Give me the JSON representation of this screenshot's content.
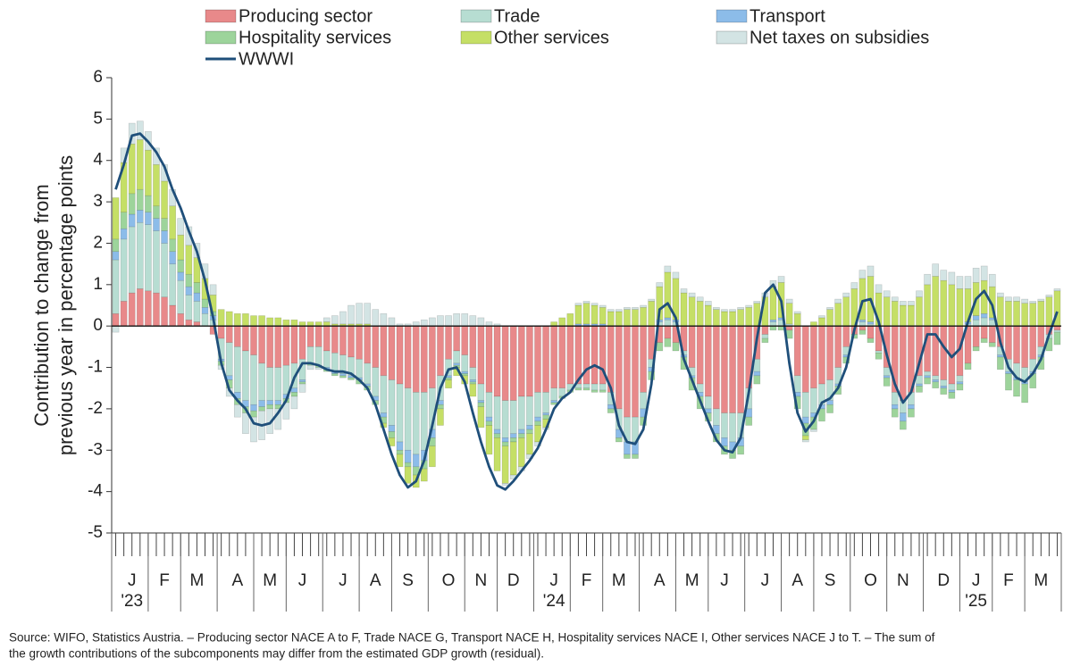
{
  "chart_data": {
    "type": "bar",
    "y_label": [
      "Contribution to change from",
      "previous year in percentage points"
    ],
    "note": [
      "Source: WIFO, Statistics Austria. – Producing sector NACE A to F, Trade NACE G, Transport NACE H, Hospitality services NACE I, Other services NACE J to T. – The sum of",
      "the growth contributions of the subcomponents may differ from the estimated GDP growth (residual)."
    ],
    "ylim": [
      -5,
      6
    ],
    "yticks": [
      -5,
      -4,
      -3,
      -2,
      -1,
      0,
      1,
      2,
      3,
      4,
      5,
      6
    ],
    "categories": [
      null,
      null,
      "J",
      null,
      null,
      null,
      "F",
      null,
      null,
      null,
      "M",
      null,
      null,
      null,
      null,
      "A",
      null,
      null,
      null,
      "M",
      null,
      null,
      null,
      "J",
      null,
      null,
      null,
      null,
      "J",
      null,
      null,
      null,
      "A",
      null,
      null,
      null,
      "S",
      null,
      null,
      null,
      null,
      "O",
      null,
      null,
      null,
      "N",
      null,
      null,
      null,
      "D",
      null,
      null,
      null,
      null,
      "J",
      null,
      null,
      null,
      "F",
      null,
      null,
      null,
      "M",
      null,
      null,
      null,
      null,
      "A",
      null,
      null,
      null,
      "M",
      null,
      null,
      null,
      "J",
      null,
      null,
      null,
      null,
      "J",
      null,
      null,
      null,
      "A",
      null,
      null,
      null,
      "S",
      null,
      null,
      null,
      null,
      "O",
      null,
      null,
      null,
      "N",
      null,
      null,
      null,
      null,
      "D",
      null,
      null,
      null,
      "J",
      null,
      null,
      null,
      "F",
      null,
      null,
      null,
      "M",
      null,
      null
    ],
    "years": [
      null,
      null,
      "'23",
      null,
      null,
      null,
      null,
      null,
      null,
      null,
      null,
      null,
      null,
      null,
      null,
      null,
      null,
      null,
      null,
      null,
      null,
      null,
      null,
      null,
      null,
      null,
      null,
      null,
      null,
      null,
      null,
      null,
      null,
      null,
      null,
      null,
      null,
      null,
      null,
      null,
      null,
      null,
      null,
      null,
      null,
      null,
      null,
      null,
      null,
      null,
      null,
      null,
      null,
      null,
      "'24",
      null,
      null,
      null,
      null,
      null,
      null,
      null,
      null,
      null,
      null,
      null,
      null,
      null,
      null,
      null,
      null,
      null,
      null,
      null,
      null,
      null,
      null,
      null,
      null,
      null,
      null,
      null,
      null,
      null,
      null,
      null,
      null,
      null,
      null,
      null,
      null,
      null,
      null,
      null,
      null,
      null,
      null,
      null,
      null,
      null,
      null,
      null,
      null,
      null,
      null,
      null,
      "'25",
      null,
      null,
      null,
      null,
      null,
      null,
      null,
      null,
      null,
      null
    ],
    "series": [
      {
        "name": "Producing sector",
        "color": "#e8898a",
        "values": [
          0.3,
          0.6,
          0.8,
          0.9,
          0.85,
          0.8,
          0.7,
          0.5,
          0.3,
          0.15,
          0.1,
          0,
          -0.2,
          -0.3,
          -0.4,
          -0.5,
          -0.6,
          -0.7,
          -0.9,
          -1.0,
          -1.0,
          -0.95,
          -0.9,
          -0.8,
          -0.5,
          -0.5,
          -0.6,
          -0.65,
          -0.7,
          -0.75,
          -0.8,
          -0.9,
          -1.0,
          -1.2,
          -1.3,
          -1.4,
          -1.5,
          -1.6,
          -1.6,
          -1.5,
          -1.2,
          -0.8,
          -0.6,
          -0.7,
          -1.0,
          -1.4,
          -1.6,
          -1.7,
          -1.8,
          -1.8,
          -1.7,
          -1.7,
          -1.6,
          -1.6,
          -1.5,
          -1.5,
          -1.4,
          -1.4,
          -1.4,
          -1.4,
          -1.4,
          -1.6,
          -2.0,
          -2.2,
          -2.2,
          -1.6,
          -0.8,
          -0.4,
          -0.3,
          -0.4,
          -0.6,
          -1.0,
          -1.4,
          -1.7,
          -2.0,
          -2.1,
          -2.1,
          -2.1,
          -1.5,
          -0.8,
          -0.2,
          0,
          0,
          -0.1,
          -1.2,
          -1.6,
          -1.5,
          -1.4,
          -1.3,
          -1.0,
          -0.5,
          -0.2,
          -0.1,
          -0.3,
          -0.6,
          -1.0,
          -1.6,
          -1.8,
          -1.6,
          -1.2,
          -1.1,
          -1.2,
          -1.3,
          -1.4,
          -1.2,
          -0.9,
          -0.5,
          -0.3,
          -0.4,
          -0.5,
          -0.8,
          -0.9,
          -1.0,
          -0.8,
          -0.5,
          -0.2,
          -0.1
        ]
      },
      {
        "name": "Trade",
        "color": "#b7ddd2",
        "values": [
          1.3,
          1.5,
          1.6,
          1.6,
          1.6,
          1.5,
          1.3,
          1.0,
          0.8,
          0.6,
          0.5,
          0.3,
          0.15,
          -0.5,
          -0.8,
          -1.1,
          -1.2,
          -1.2,
          -0.9,
          -0.8,
          -0.8,
          -0.7,
          -0.6,
          -0.5,
          -0.4,
          -0.45,
          -0.4,
          -0.45,
          -0.45,
          -0.45,
          -0.45,
          -0.5,
          -0.7,
          -0.9,
          -1.1,
          -1.4,
          -1.5,
          -1.5,
          -1.4,
          -1.0,
          -0.6,
          -0.4,
          -0.3,
          -0.4,
          -0.3,
          -0.4,
          -0.6,
          -0.8,
          -0.9,
          -0.8,
          -0.8,
          -0.7,
          -0.6,
          -0.5,
          -0.3,
          -0.2,
          -0.15,
          -0.1,
          -0.1,
          -0.15,
          -0.15,
          -0.3,
          -0.5,
          -0.6,
          -0.6,
          -0.4,
          -0.2,
          0.1,
          0.15,
          0.1,
          -0.1,
          -0.2,
          -0.2,
          -0.3,
          -0.4,
          -0.6,
          -0.7,
          -0.6,
          -0.5,
          -0.3,
          -0.1,
          0.1,
          0.15,
          0.05,
          -0.4,
          -0.6,
          -0.6,
          -0.5,
          -0.5,
          -0.4,
          -0.2,
          0,
          0.1,
          0.05,
          -0.05,
          -0.2,
          -0.3,
          -0.3,
          -0.3,
          -0.2,
          -0.1,
          -0.1,
          -0.15,
          -0.15,
          -0.15,
          0.05,
          0.15,
          0.2,
          0.15,
          -0.2,
          -0.3,
          -0.35,
          -0.35,
          -0.3,
          -0.2,
          -0.1,
          -0.05
        ]
      },
      {
        "name": "Transport",
        "color": "#8cbce9",
        "values": [
          0.2,
          0.25,
          0.3,
          0.3,
          0.3,
          0.3,
          0.3,
          0.3,
          0.2,
          0.2,
          0.2,
          0.15,
          0.1,
          -0.05,
          -0.1,
          -0.15,
          -0.15,
          -0.15,
          -0.15,
          -0.1,
          -0.1,
          -0.1,
          -0.1,
          -0.05,
          0,
          0,
          -0.05,
          -0.05,
          -0.05,
          -0.05,
          -0.05,
          -0.05,
          -0.1,
          -0.1,
          -0.15,
          -0.2,
          -0.3,
          -0.3,
          -0.25,
          -0.2,
          -0.1,
          -0.05,
          -0.05,
          -0.05,
          -0.05,
          -0.05,
          -0.1,
          -0.1,
          -0.1,
          -0.1,
          -0.1,
          -0.1,
          -0.1,
          -0.05,
          -0.05,
          0,
          0,
          0.05,
          0.05,
          0.05,
          0.05,
          -0.1,
          -0.2,
          -0.3,
          -0.3,
          -0.2,
          -0.1,
          0.05,
          0.05,
          0.05,
          -0.05,
          -0.05,
          -0.1,
          -0.1,
          -0.2,
          -0.2,
          -0.2,
          -0.2,
          -0.2,
          -0.1,
          0,
          0.05,
          0.05,
          0,
          -0.1,
          -0.15,
          -0.1,
          -0.1,
          -0.1,
          -0.05,
          -0.05,
          0,
          0.05,
          0.05,
          0,
          -0.05,
          -0.1,
          -0.2,
          -0.1,
          -0.05,
          -0.05,
          -0.05,
          -0.05,
          -0.05,
          -0.05,
          0.05,
          0.1,
          0.1,
          0.05,
          -0.05,
          -0.05,
          -0.05,
          -0.05,
          -0.05,
          -0.05,
          0,
          0
        ]
      },
      {
        "name": "Hospitality services",
        "color": "#9dd49b",
        "values": [
          0.3,
          0.4,
          0.5,
          0.5,
          0.4,
          0.3,
          0.3,
          0.3,
          0.3,
          0.3,
          0.25,
          0.2,
          0.1,
          -0.1,
          -0.2,
          -0.15,
          -0.15,
          -0.15,
          -0.1,
          -0.1,
          -0.1,
          -0.1,
          -0.1,
          -0.05,
          -0.05,
          -0.05,
          -0.05,
          -0.05,
          -0.05,
          -0.05,
          -0.1,
          -0.1,
          -0.1,
          -0.15,
          -0.15,
          -0.1,
          -0.1,
          -0.2,
          -0.2,
          -0.2,
          -0.1,
          -0.05,
          -0.05,
          -0.05,
          -0.05,
          -0.1,
          -0.1,
          -0.1,
          -0.1,
          -0.1,
          -0.1,
          -0.1,
          -0.1,
          -0.1,
          -0.05,
          -0.05,
          -0.05,
          -0.05,
          -0.05,
          -0.05,
          -0.05,
          -0.1,
          -0.1,
          -0.1,
          -0.1,
          -0.2,
          -0.2,
          -0.2,
          -0.2,
          -0.2,
          -0.3,
          -0.3,
          -0.3,
          -0.2,
          -0.2,
          -0.2,
          -0.2,
          -0.2,
          -0.2,
          -0.2,
          -0.1,
          -0.1,
          -0.1,
          -0.2,
          -0.3,
          -0.3,
          -0.3,
          -0.3,
          -0.2,
          -0.2,
          -0.15,
          -0.1,
          -0.1,
          -0.1,
          -0.15,
          -0.2,
          -0.2,
          -0.2,
          -0.2,
          -0.15,
          -0.15,
          -0.15,
          -0.15,
          -0.15,
          -0.15,
          -0.15,
          -0.1,
          -0.1,
          -0.1,
          -0.3,
          -0.4,
          -0.4,
          -0.45,
          -0.35,
          -0.3,
          -0.3,
          -0.3
        ]
      },
      {
        "name": "Other services",
        "color": "#c5df66",
        "values": [
          1.0,
          1.2,
          1.2,
          1.2,
          1.1,
          1.0,
          0.9,
          0.8,
          0.6,
          0.7,
          0.6,
          0.5,
          0.4,
          0.4,
          0.35,
          0.3,
          0.3,
          0.25,
          0.25,
          0.2,
          0.2,
          0.15,
          0.15,
          0.1,
          0.1,
          0.1,
          0.1,
          0.05,
          0.05,
          0.05,
          0.05,
          0.05,
          0,
          -0.1,
          -0.2,
          -0.3,
          -0.4,
          -0.3,
          -0.3,
          -0.5,
          -0.4,
          -0.2,
          -0.2,
          -0.2,
          -0.3,
          -0.5,
          -0.7,
          -0.8,
          -0.9,
          -0.8,
          -0.7,
          -0.5,
          -0.4,
          -0.2,
          0.1,
          0.2,
          0.3,
          0.45,
          0.5,
          0.45,
          0.4,
          0.35,
          0.35,
          0.4,
          0.4,
          0.45,
          0.6,
          0.8,
          1.1,
          1.0,
          0.8,
          0.7,
          0.6,
          0.5,
          0.4,
          0.35,
          0.35,
          0.4,
          0.45,
          0.55,
          0.7,
          0.8,
          0.85,
          0.5,
          0.3,
          -0.1,
          0.1,
          0.2,
          0.4,
          0.55,
          0.7,
          0.9,
          1.0,
          1.1,
          0.8,
          0.7,
          0.6,
          0.5,
          0.5,
          0.7,
          1.0,
          1.2,
          1.1,
          1.0,
          0.9,
          0.8,
          0.8,
          0.8,
          0.75,
          0.7,
          0.6,
          0.6,
          0.55,
          0.55,
          0.6,
          0.7,
          0.85
        ]
      },
      {
        "name": "Net taxes on subsidies",
        "color": "#d3e4e4",
        "values": [
          -0.15,
          0.35,
          0.5,
          0.45,
          0.45,
          0.4,
          0.4,
          0.4,
          0.4,
          0.45,
          0.35,
          0.35,
          0.25,
          -0.1,
          -0.2,
          -0.3,
          -0.5,
          -0.6,
          -0.7,
          -0.6,
          -0.5,
          -0.4,
          -0.3,
          -0.2,
          -0.1,
          -0.05,
          0.1,
          0.2,
          0.3,
          0.45,
          0.5,
          0.5,
          0.4,
          0.3,
          0.2,
          0.05,
          0.05,
          0.1,
          0.15,
          0.2,
          0.25,
          0.25,
          0.3,
          0.3,
          0.25,
          0.2,
          0.1,
          0.05,
          -0.05,
          -0.1,
          -0.1,
          -0.1,
          -0.1,
          -0.05,
          0,
          0,
          0,
          0.05,
          0.05,
          0.05,
          0.05,
          0.05,
          0.05,
          0.05,
          0.05,
          0.05,
          0.05,
          0.1,
          0.15,
          0.15,
          0.1,
          0.1,
          0.1,
          0.1,
          0.05,
          0.05,
          0.05,
          0.05,
          0.05,
          0.05,
          0.1,
          0.15,
          0.15,
          0.1,
          0.05,
          -0.05,
          -0.05,
          0.05,
          0.05,
          0.1,
          0.1,
          0.15,
          0.2,
          0.25,
          0.2,
          0.15,
          0.1,
          0.1,
          0.1,
          0.15,
          0.25,
          0.3,
          0.25,
          0.3,
          0.3,
          0.3,
          0.35,
          0.35,
          0.3,
          0.1,
          0.1,
          0.1,
          0.1,
          0.05,
          0.05,
          0.05,
          0.05
        ]
      },
      {
        "name": "WWWI",
        "color": "#1f4f7a",
        "type": "line",
        "values": [
          3.3,
          3.9,
          4.6,
          4.65,
          4.45,
          4.2,
          3.85,
          3.3,
          2.85,
          2.3,
          1.8,
          1.1,
          0.2,
          -0.9,
          -1.55,
          -1.8,
          -2.0,
          -2.35,
          -2.4,
          -2.35,
          -2.1,
          -1.8,
          -1.25,
          -0.9,
          -0.9,
          -0.95,
          -1.05,
          -1.1,
          -1.1,
          -1.15,
          -1.3,
          -1.5,
          -1.9,
          -2.5,
          -3.1,
          -3.6,
          -3.9,
          -3.75,
          -3.25,
          -2.4,
          -1.5,
          -1.05,
          -1.0,
          -1.35,
          -2.1,
          -2.8,
          -3.4,
          -3.85,
          -3.95,
          -3.75,
          -3.5,
          -3.25,
          -2.95,
          -2.5,
          -2.0,
          -1.75,
          -1.6,
          -1.3,
          -1.05,
          -0.95,
          -1.05,
          -1.5,
          -2.4,
          -2.8,
          -2.85,
          -2.5,
          -1.4,
          0.4,
          0.55,
          0.2,
          -0.8,
          -1.3,
          -1.8,
          -2.3,
          -2.75,
          -3.0,
          -3.05,
          -2.7,
          -1.6,
          -0.3,
          0.8,
          1.0,
          0.6,
          -0.9,
          -2.1,
          -2.55,
          -2.3,
          -1.85,
          -1.75,
          -1.5,
          -1.0,
          -0.1,
          0.6,
          0.65,
          0.1,
          -0.7,
          -1.4,
          -1.85,
          -1.6,
          -0.9,
          -0.2,
          -0.2,
          -0.5,
          -0.75,
          -0.55,
          0.1,
          0.65,
          0.85,
          0.5,
          -0.4,
          -1.0,
          -1.25,
          -1.35,
          -1.15,
          -0.8,
          -0.2,
          0.35
        ]
      }
    ]
  }
}
